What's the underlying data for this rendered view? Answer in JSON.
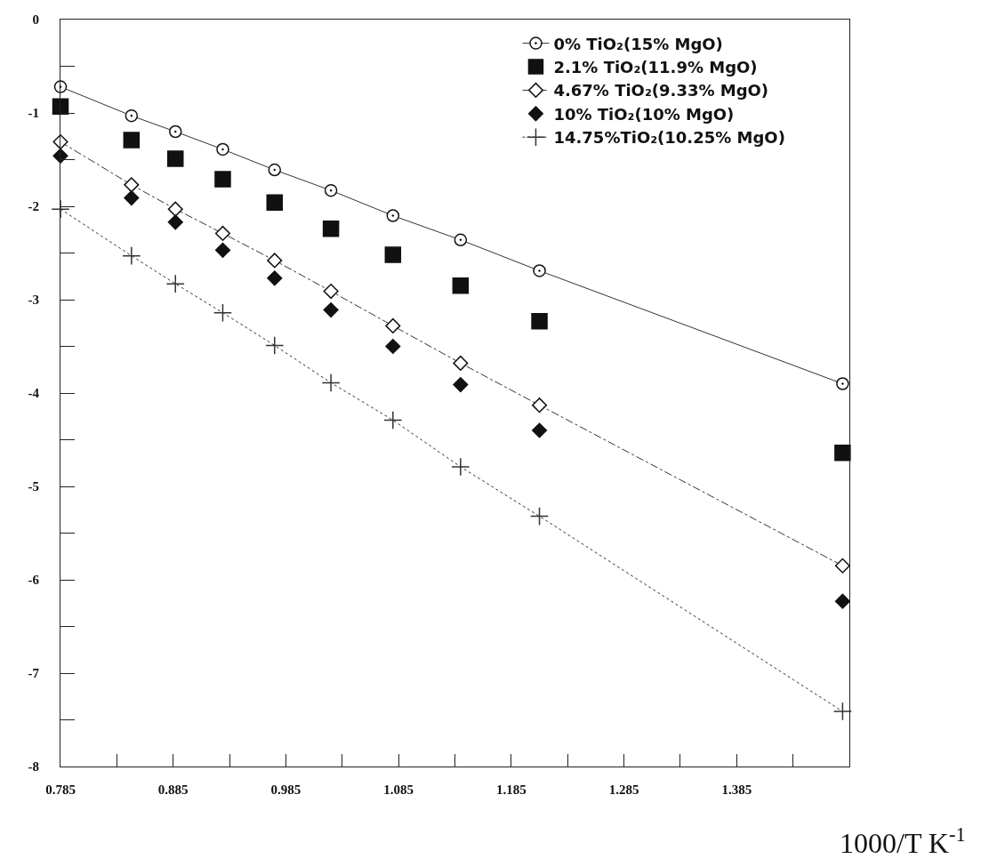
{
  "chart_data": {
    "type": "scatter",
    "xlabel": "1000/T K$^{-1}$",
    "x": [
      0.785,
      0.848,
      0.887,
      0.929,
      0.975,
      1.025,
      1.08,
      1.14,
      1.21,
      1.479
    ],
    "series": [
      {
        "name": "0% TiO₂(15% MgO)",
        "color": "#ffffff",
        "marker": "circle",
        "type": "line",
        "line_style": "solid",
        "values": [
          -0.72,
          -1.03,
          -1.2,
          -1.39,
          -1.61,
          -1.83,
          -2.1,
          -2.36,
          -2.69,
          -3.9
        ]
      },
      {
        "name": "2.1% TiO₂(11.9% MgO)",
        "color": "#111111",
        "marker": "square",
        "type": "scatter",
        "values": [
          -0.93,
          -1.29,
          -1.49,
          -1.71,
          -1.96,
          -2.24,
          -2.52,
          -2.85,
          -3.23,
          -4.64
        ]
      },
      {
        "name": "4.67% TiO₂(9.33% MgO)",
        "color": "#ffffff",
        "marker": "diamond",
        "type": "line",
        "line_style": "dashed",
        "values": [
          -1.31,
          -1.77,
          -2.03,
          -2.29,
          -2.58,
          -2.91,
          -3.28,
          -3.68,
          -4.13,
          -5.85
        ]
      },
      {
        "name": "10% TiO₂(10% MgO)",
        "color": "#111111",
        "marker": "diamond",
        "type": "scatter",
        "values": [
          -1.46,
          -1.91,
          -2.17,
          -2.47,
          -2.77,
          -3.11,
          -3.5,
          -3.91,
          -4.4,
          -6.23
        ]
      },
      {
        "name": "14.75%TiO₂(10.25% MgO)",
        "color": "#333333",
        "marker": "cross",
        "type": "line",
        "line_style": "dotted",
        "values": [
          -2.03,
          -2.53,
          -2.83,
          -3.14,
          -3.49,
          -3.89,
          -4.29,
          -4.79,
          -5.32,
          -7.41
        ]
      }
    ],
    "xlim": [
      0.785,
      1.485
    ],
    "xticks": [
      0.785,
      {
        "value": 0.835,
        "label": null
      },
      0.885,
      {
        "value": 0.935,
        "label": null
      },
      0.985,
      {
        "value": 1.035,
        "label": null
      },
      1.085,
      {
        "value": 1.135,
        "label": null
      },
      1.185,
      {
        "value": 1.235,
        "label": null
      },
      1.285,
      {
        "value": 1.335,
        "label": null
      },
      1.385,
      {
        "value": 1.435,
        "label": null
      }
    ],
    "ylim": [
      -8,
      0
    ],
    "yticks": [
      0,
      {
        "value": -0.5,
        "label": null
      },
      -1,
      {
        "value": -1.5,
        "label": null
      },
      -2,
      {
        "value": -2.5,
        "label": null
      },
      -3,
      {
        "value": -3.5,
        "label": null
      },
      -4,
      {
        "value": -4.5,
        "label": null
      },
      -5,
      {
        "value": -5.5,
        "label": null
      },
      -6,
      {
        "value": -6.5,
        "label": null
      },
      -7,
      {
        "value": -7.5,
        "label": null
      },
      -8
    ],
    "grid": false,
    "legend": "top right"
  }
}
